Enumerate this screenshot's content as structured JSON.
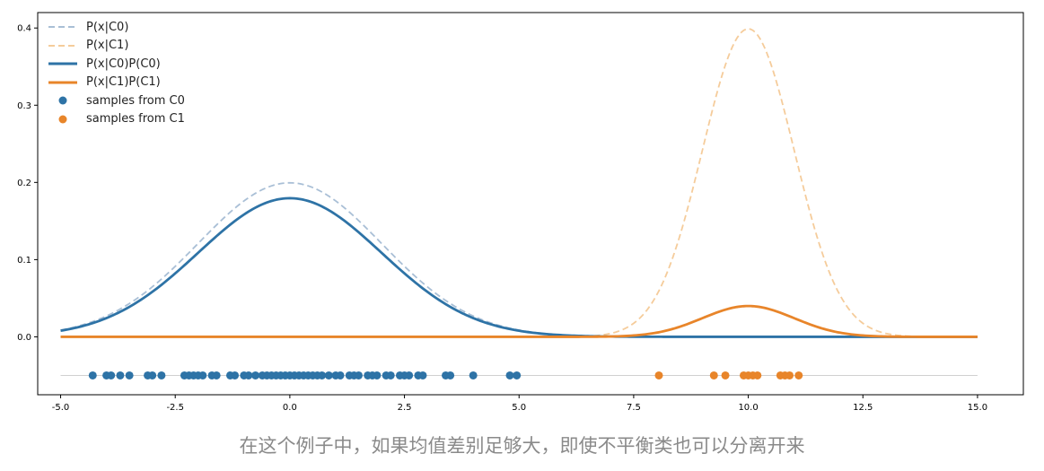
{
  "caption": "在这个例子中，如果均值差别足够大，即使不平衡类也可以分离开来",
  "chart_data": {
    "type": "line",
    "title": "",
    "xlabel": "",
    "ylabel": "",
    "xlim": [
      -5.5,
      16.0
    ],
    "ylim": [
      -0.075,
      0.42
    ],
    "xticks": [
      -5.0,
      -2.5,
      0.0,
      2.5,
      5.0,
      7.5,
      10.0,
      12.5,
      15.0
    ],
    "xtick_labels": [
      "-5.0",
      "-2.5",
      "0.0",
      "2.5",
      "5.0",
      "7.5",
      "10.0",
      "12.5",
      "15.0"
    ],
    "yticks": [
      0.0,
      0.1,
      0.2,
      0.3,
      0.4
    ],
    "ytick_labels": [
      "0.0",
      "0.1",
      "0.2",
      "0.3",
      "0.4"
    ],
    "grid": false,
    "legend_position": "top-left",
    "sample_baseline_y": -0.05,
    "series": [
      {
        "name": "P(x|C0)",
        "kind": "gaussian",
        "mean": 0.0,
        "std": 2.0,
        "scale": 1.0,
        "x_range": [
          -5.0,
          15.0
        ],
        "style": "dashed",
        "color": "#a9bfd6"
      },
      {
        "name": "P(x|C1)",
        "kind": "gaussian",
        "mean": 10.0,
        "std": 1.0,
        "scale": 1.0,
        "x_range": [
          -5.0,
          15.0
        ],
        "style": "dashed",
        "color": "#f5cc9b"
      },
      {
        "name": "P(x|C0)P(C0)",
        "kind": "gaussian",
        "mean": 0.0,
        "std": 2.0,
        "scale": 0.9,
        "x_range": [
          -5.0,
          15.0
        ],
        "style": "solid",
        "color": "#2e73a6"
      },
      {
        "name": "P(x|C1)P(C1)",
        "kind": "gaussian",
        "mean": 10.0,
        "std": 1.0,
        "scale": 0.1,
        "x_range": [
          -5.0,
          15.0
        ],
        "style": "solid",
        "color": "#e8852a"
      }
    ],
    "samples": [
      {
        "name": "samples from C0",
        "color": "#2e73a6",
        "y": -0.05,
        "x": [
          -4.3,
          -4.0,
          -3.9,
          -3.7,
          -3.5,
          -3.1,
          -3.0,
          -2.8,
          -2.3,
          -2.2,
          -2.1,
          -2.0,
          -1.9,
          -1.7,
          -1.6,
          -1.3,
          -1.2,
          -1.0,
          -0.9,
          -0.75,
          -0.6,
          -0.5,
          -0.4,
          -0.3,
          -0.2,
          -0.1,
          0.0,
          0.1,
          0.2,
          0.3,
          0.4,
          0.5,
          0.6,
          0.7,
          0.85,
          1.0,
          1.1,
          1.3,
          1.4,
          1.5,
          1.7,
          1.8,
          1.9,
          2.1,
          2.2,
          2.4,
          2.5,
          2.6,
          2.8,
          2.9,
          3.4,
          3.5,
          4.0,
          4.8,
          4.95
        ]
      },
      {
        "name": "samples from C1",
        "color": "#e8852a",
        "y": -0.05,
        "x": [
          8.05,
          9.25,
          9.5,
          9.9,
          10.0,
          10.1,
          10.2,
          10.7,
          10.8,
          10.9,
          11.1
        ]
      }
    ]
  }
}
